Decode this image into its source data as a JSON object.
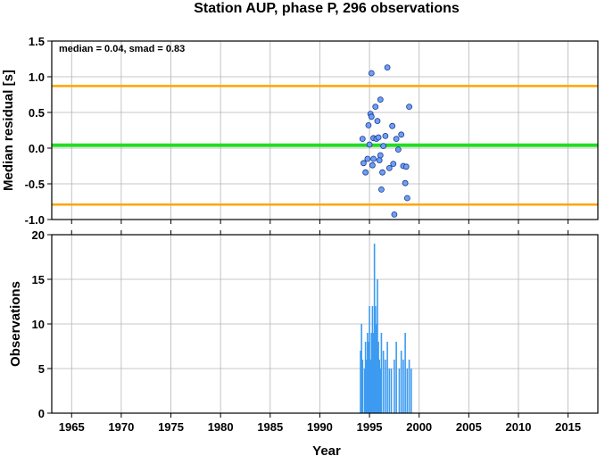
{
  "chart_data": [
    {
      "type": "scatter",
      "title": "Station AUP, phase P, 296 observations",
      "ylabel": "Median residual [s]",
      "annotation": "median = 0.04, smad = 0.83",
      "xlim": [
        1963,
        2018
      ],
      "ylim": [
        -1.0,
        1.5
      ],
      "yticks": [
        "-1.0",
        "-0.5",
        "0.0",
        "0.5",
        "1.0",
        "1.5"
      ],
      "grid": true,
      "reference_lines": [
        {
          "y": 0.04,
          "color": "#22dd22"
        },
        {
          "y": 0.87,
          "color": "#ffa500"
        },
        {
          "y": -0.79,
          "color": "#ffa500"
        }
      ],
      "point_color": "#6f9ef8",
      "points": [
        {
          "x": 1994.3,
          "y": 0.13
        },
        {
          "x": 1994.4,
          "y": -0.21
        },
        {
          "x": 1994.6,
          "y": -0.34
        },
        {
          "x": 1994.8,
          "y": -0.15
        },
        {
          "x": 1994.9,
          "y": 0.32
        },
        {
          "x": 1995.0,
          "y": 0.05
        },
        {
          "x": 1995.1,
          "y": 0.48
        },
        {
          "x": 1995.2,
          "y": 0.44
        },
        {
          "x": 1995.2,
          "y": 1.05
        },
        {
          "x": 1995.3,
          "y": -0.24
        },
        {
          "x": 1995.4,
          "y": -0.15
        },
        {
          "x": 1995.4,
          "y": 0.14
        },
        {
          "x": 1995.6,
          "y": 0.58
        },
        {
          "x": 1995.7,
          "y": 0.13
        },
        {
          "x": 1995.8,
          "y": 0.38
        },
        {
          "x": 1995.9,
          "y": 0.15
        },
        {
          "x": 1996.0,
          "y": -0.17
        },
        {
          "x": 1996.1,
          "y": -0.1
        },
        {
          "x": 1996.1,
          "y": 0.68
        },
        {
          "x": 1996.2,
          "y": -0.58
        },
        {
          "x": 1996.3,
          "y": -0.34
        },
        {
          "x": 1996.4,
          "y": 0.03
        },
        {
          "x": 1996.6,
          "y": 0.17
        },
        {
          "x": 1996.8,
          "y": 1.13
        },
        {
          "x": 1997.0,
          "y": -0.28
        },
        {
          "x": 1997.3,
          "y": 0.31
        },
        {
          "x": 1997.4,
          "y": -0.22
        },
        {
          "x": 1997.5,
          "y": -0.93
        },
        {
          "x": 1997.7,
          "y": 0.13
        },
        {
          "x": 1997.9,
          "y": -0.02
        },
        {
          "x": 1998.2,
          "y": 0.19
        },
        {
          "x": 1998.4,
          "y": -0.25
        },
        {
          "x": 1998.6,
          "y": -0.49
        },
        {
          "x": 1998.7,
          "y": -0.26
        },
        {
          "x": 1998.8,
          "y": -0.7
        },
        {
          "x": 1999.0,
          "y": 0.58
        }
      ]
    },
    {
      "type": "bar",
      "xlabel": "Year",
      "ylabel": "Observations",
      "xlim": [
        1963,
        2018
      ],
      "ylim": [
        0,
        20
      ],
      "xticks": [
        "1965",
        "1970",
        "1975",
        "1980",
        "1985",
        "1990",
        "1995",
        "2000",
        "2005",
        "2010",
        "2015"
      ],
      "yticks": [
        "0",
        "5",
        "10",
        "15",
        "20"
      ],
      "grid": true,
      "bar_color": "#3d9bf0",
      "bars": [
        {
          "x": 1994.1,
          "y": 7
        },
        {
          "x": 1994.2,
          "y": 10
        },
        {
          "x": 1994.3,
          "y": 6
        },
        {
          "x": 1994.5,
          "y": 5
        },
        {
          "x": 1994.6,
          "y": 8
        },
        {
          "x": 1994.7,
          "y": 6
        },
        {
          "x": 1994.8,
          "y": 9
        },
        {
          "x": 1994.9,
          "y": 8
        },
        {
          "x": 1995.0,
          "y": 12
        },
        {
          "x": 1995.1,
          "y": 6
        },
        {
          "x": 1995.2,
          "y": 9
        },
        {
          "x": 1995.3,
          "y": 12
        },
        {
          "x": 1995.4,
          "y": 9
        },
        {
          "x": 1995.5,
          "y": 19
        },
        {
          "x": 1995.6,
          "y": 12
        },
        {
          "x": 1995.7,
          "y": 10
        },
        {
          "x": 1995.8,
          "y": 15
        },
        {
          "x": 1995.9,
          "y": 8
        },
        {
          "x": 1996.0,
          "y": 6
        },
        {
          "x": 1996.1,
          "y": 5
        },
        {
          "x": 1996.2,
          "y": 9
        },
        {
          "x": 1996.4,
          "y": 7
        },
        {
          "x": 1996.6,
          "y": 6
        },
        {
          "x": 1996.8,
          "y": 8
        },
        {
          "x": 1997.0,
          "y": 5
        },
        {
          "x": 1997.2,
          "y": 5
        },
        {
          "x": 1997.5,
          "y": 6
        },
        {
          "x": 1997.7,
          "y": 8
        },
        {
          "x": 1998.0,
          "y": 5
        },
        {
          "x": 1998.2,
          "y": 7
        },
        {
          "x": 1998.4,
          "y": 6
        },
        {
          "x": 1998.6,
          "y": 9
        },
        {
          "x": 1998.8,
          "y": 5
        },
        {
          "x": 1999.0,
          "y": 6
        },
        {
          "x": 1999.2,
          "y": 5
        }
      ]
    }
  ]
}
